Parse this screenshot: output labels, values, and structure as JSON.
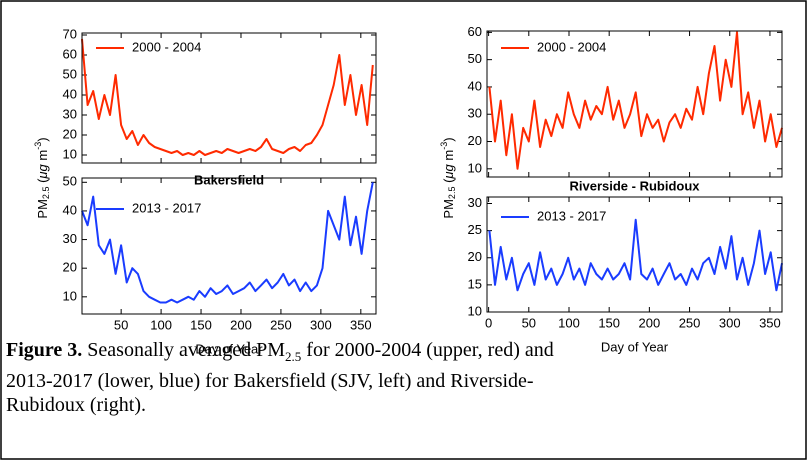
{
  "chart_data": [
    {
      "type": "line",
      "annotation": "Bakersfield",
      "x": [
        1,
        8,
        15,
        22,
        29,
        36,
        43,
        50,
        57,
        64,
        71,
        78,
        85,
        92,
        99,
        106,
        113,
        120,
        127,
        134,
        141,
        148,
        155,
        162,
        169,
        176,
        183,
        190,
        197,
        204,
        211,
        218,
        225,
        232,
        239,
        246,
        253,
        260,
        267,
        274,
        281,
        288,
        295,
        302,
        309,
        316,
        323,
        330,
        337,
        344,
        351,
        358,
        365
      ],
      "series": [
        {
          "name": "2000 - 2004",
          "color": "#ff2a00",
          "values": [
            68,
            35,
            42,
            28,
            40,
            30,
            50,
            25,
            18,
            22,
            15,
            20,
            16,
            14,
            13,
            12,
            11,
            12,
            10,
            11,
            10,
            12,
            10,
            11,
            12,
            11,
            13,
            12,
            11,
            12,
            13,
            12,
            14,
            18,
            13,
            12,
            11,
            13,
            14,
            12,
            15,
            16,
            20,
            25,
            35,
            45,
            60,
            35,
            50,
            30,
            45,
            25,
            55
          ]
        }
      ],
      "xlim": [
        1,
        369
      ],
      "xticks": [
        50,
        100,
        150,
        200,
        250,
        300,
        350
      ],
      "ylim": [
        6,
        71
      ],
      "yticks": [
        10,
        20,
        30,
        40,
        50,
        60,
        70
      ]
    },
    {
      "type": "line",
      "xlabel": "Day of Year",
      "x": [
        1,
        8,
        15,
        22,
        29,
        36,
        43,
        50,
        57,
        64,
        71,
        78,
        85,
        92,
        99,
        106,
        113,
        120,
        127,
        134,
        141,
        148,
        155,
        162,
        169,
        176,
        183,
        190,
        197,
        204,
        211,
        218,
        225,
        232,
        239,
        246,
        253,
        260,
        267,
        274,
        281,
        288,
        295,
        302,
        309,
        316,
        323,
        330,
        337,
        344,
        351,
        358,
        365
      ],
      "series": [
        {
          "name": "2013 - 2017",
          "color": "#1a3cff",
          "values": [
            40,
            35,
            45,
            28,
            25,
            30,
            18,
            28,
            15,
            20,
            18,
            12,
            10,
            9,
            8,
            8,
            9,
            8,
            9,
            10,
            9,
            12,
            10,
            13,
            11,
            12,
            14,
            11,
            12,
            13,
            15,
            12,
            14,
            16,
            13,
            15,
            18,
            14,
            16,
            12,
            15,
            12,
            14,
            20,
            40,
            35,
            30,
            45,
            28,
            38,
            25,
            40,
            50
          ]
        }
      ],
      "xlim": [
        1,
        369
      ],
      "xticks": [
        50,
        100,
        150,
        200,
        250,
        300,
        350
      ],
      "ylim": [
        4,
        51.5
      ],
      "yticks": [
        10,
        20,
        30,
        40,
        50
      ]
    },
    {
      "type": "line",
      "annotation": "Riverside - Rubidoux",
      "x": [
        1,
        8,
        15,
        22,
        29,
        36,
        43,
        50,
        57,
        64,
        71,
        78,
        85,
        92,
        99,
        106,
        113,
        120,
        127,
        134,
        141,
        148,
        155,
        162,
        169,
        176,
        183,
        190,
        197,
        204,
        211,
        218,
        225,
        232,
        239,
        246,
        253,
        260,
        267,
        274,
        281,
        288,
        295,
        302,
        309,
        316,
        323,
        330,
        337,
        344,
        351,
        358,
        365
      ],
      "series": [
        {
          "name": "2000 - 2004",
          "color": "#ff2a00",
          "values": [
            40,
            20,
            35,
            15,
            30,
            10,
            25,
            20,
            35,
            18,
            28,
            22,
            30,
            25,
            38,
            30,
            25,
            35,
            28,
            33,
            30,
            40,
            28,
            35,
            25,
            30,
            38,
            22,
            30,
            25,
            28,
            20,
            27,
            30,
            25,
            32,
            28,
            40,
            30,
            45,
            55,
            35,
            50,
            40,
            60,
            30,
            38,
            25,
            35,
            20,
            30,
            18,
            25
          ]
        }
      ],
      "xlim": [
        -2,
        365
      ],
      "xticks": [
        0,
        50,
        100,
        150,
        200,
        250,
        300,
        350
      ],
      "ylim": [
        7,
        60.5
      ],
      "yticks": [
        10,
        20,
        30,
        40,
        50,
        60
      ]
    },
    {
      "type": "line",
      "xlabel": "Day of Year",
      "x": [
        1,
        8,
        15,
        22,
        29,
        36,
        43,
        50,
        57,
        64,
        71,
        78,
        85,
        92,
        99,
        106,
        113,
        120,
        127,
        134,
        141,
        148,
        155,
        162,
        169,
        176,
        183,
        190,
        197,
        204,
        211,
        218,
        225,
        232,
        239,
        246,
        253,
        260,
        267,
        274,
        281,
        288,
        295,
        302,
        309,
        316,
        323,
        330,
        337,
        344,
        351,
        358,
        365
      ],
      "series": [
        {
          "name": "2013 - 2017",
          "color": "#1a3cff",
          "values": [
            25,
            15,
            22,
            16,
            20,
            14,
            17,
            19,
            15,
            21,
            16,
            18,
            15,
            17,
            20,
            16,
            18,
            15,
            19,
            17,
            16,
            18,
            16,
            17,
            19,
            16,
            27,
            17,
            16,
            18,
            15,
            17,
            19,
            16,
            17,
            15,
            18,
            16,
            19,
            20,
            17,
            22,
            18,
            24,
            16,
            20,
            15,
            19,
            25,
            17,
            21,
            14,
            19
          ]
        }
      ],
      "xlim": [
        -2,
        365
      ],
      "xticks": [
        0,
        50,
        100,
        150,
        200,
        250,
        300,
        350
      ],
      "ylim": [
        10,
        31.2
      ],
      "yticks": [
        10,
        15,
        20,
        25,
        30
      ]
    }
  ],
  "y_label": {
    "text": "PM",
    "subscript": "2.5",
    "unit_open": " (",
    "unit_italic": "μg",
    "unit": " m",
    "superscript": "-3",
    "unit_close": ")"
  },
  "caption": {
    "label": "Figure 3.",
    "text_before": " Seasonally averaged PM",
    "subscript": "2.5",
    "text_after": " for 2000-2004 (upper, red) and",
    "line_2": "2013-2017 (lower, blue) for Bakersfield (SJV, left) and Riverside-",
    "line_3": "Rubidoux (right)."
  }
}
